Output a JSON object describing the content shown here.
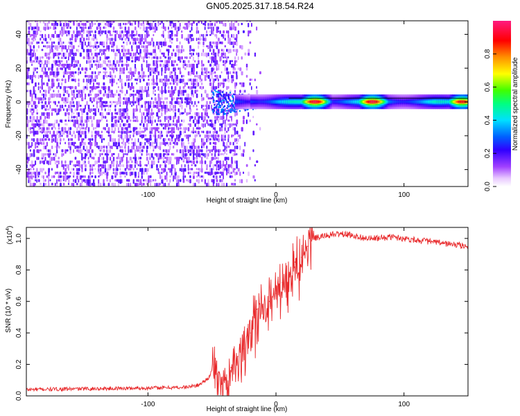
{
  "page": {
    "title": "GN05.2025.317.18.54.R24"
  },
  "chart_data": [
    {
      "type": "heatmap",
      "title": "GN05.2025.317.18.54.R24",
      "xlabel": "Height of straight line (km)",
      "ylabel": "Frequency (Hz)",
      "xlim": [
        -195,
        150
      ],
      "ylim": [
        -50,
        48
      ],
      "x_ticks": [
        -100,
        0,
        100
      ],
      "x_tick_labels": [
        "-100",
        "0",
        "100"
      ],
      "y_ticks": [
        -40,
        -20,
        0,
        20,
        40
      ],
      "y_tick_labels": [
        "-40",
        "-20",
        "0",
        "20",
        "40"
      ],
      "colorbar": {
        "label": "Normalized spectral amplitude",
        "range": [
          0,
          1
        ],
        "ticks": [
          0.0,
          0.2,
          0.4,
          0.6,
          0.8
        ],
        "tick_labels": [
          "0.0",
          "0.2",
          "0.4",
          "0.6",
          "0.8"
        ],
        "colormap": "rainbow (white-magenta-violet-blue-cyan-green-yellow-red-pink)"
      },
      "description_values": {
        "noise_region_x": [
          -195,
          -30
        ],
        "noise_amplitude_range": [
          0.05,
          0.2
        ],
        "signal_band_start_x": -50,
        "signal_frequency_hz": 0,
        "signal_peaks": [
          {
            "x": 30,
            "amplitude": 0.95
          },
          {
            "x": 75,
            "amplitude": 0.95
          },
          {
            "x": 145,
            "amplitude": 0.9
          }
        ]
      }
    },
    {
      "type": "line",
      "xlabel": "Height of straight line (km)",
      "ylabel": "SNR (10 * v/v)",
      "y_scale_label": "(x10",
      "y_scale_exponent": "4",
      "xlim": [
        -195,
        150
      ],
      "ylim": [
        0,
        1.07
      ],
      "x_ticks": [
        -100,
        0,
        100
      ],
      "x_tick_labels": [
        "-100",
        "0",
        "100"
      ],
      "y_ticks": [
        0.0,
        0.2,
        0.4,
        0.6,
        0.8,
        1.0
      ],
      "y_tick_labels": [
        "0.0",
        "0.2",
        "0.4",
        "0.6",
        "0.8",
        "1.0"
      ],
      "color": "#e8282a",
      "series": [
        {
          "x": [
            -195,
            -150,
            -100,
            -70,
            -60,
            -52,
            -48,
            -45,
            -42,
            -38,
            -35,
            -30,
            -25,
            -20,
            -15,
            -10,
            -5,
            0,
            5,
            10,
            15,
            20,
            25,
            30,
            40,
            50,
            60,
            70,
            80,
            90,
            100,
            110,
            120,
            130,
            140,
            150
          ],
          "values": [
            0.04,
            0.045,
            0.05,
            0.055,
            0.07,
            0.12,
            0.2,
            0.15,
            0.08,
            0.05,
            0.18,
            0.25,
            0.3,
            0.4,
            0.55,
            0.5,
            0.6,
            0.65,
            0.72,
            0.72,
            0.85,
            0.88,
            0.95,
            1.0,
            1.02,
            1.03,
            1.02,
            1.0,
            1.0,
            1.01,
            1.0,
            0.99,
            0.98,
            0.97,
            0.96,
            0.95
          ]
        }
      ]
    }
  ]
}
